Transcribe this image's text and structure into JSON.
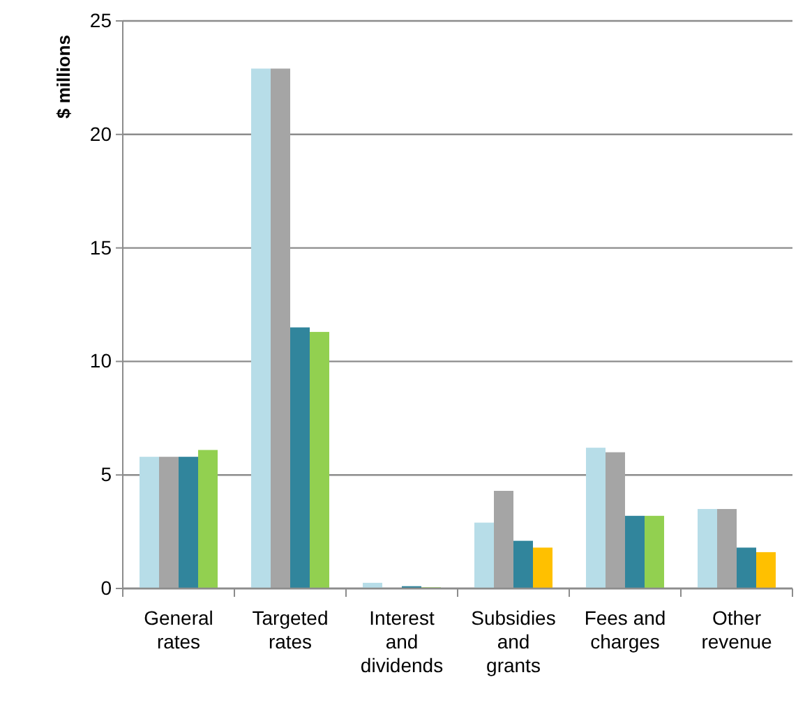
{
  "chart_data": {
    "type": "bar",
    "ylabel": "$ millions",
    "categories": [
      "General rates",
      "Targeted rates",
      "Interest and dividends",
      "Subsidies and grants",
      "Fees and charges",
      "Other revenue"
    ],
    "series": [
      {
        "color": "#b7dde8",
        "values": [
          5.8,
          22.9,
          0.25,
          2.9,
          6.2,
          3.5
        ]
      },
      {
        "color": "#a5a5a5",
        "values": [
          5.8,
          22.9,
          null,
          4.3,
          6.0,
          3.5
        ]
      },
      {
        "color": "#31859c",
        "values": [
          5.8,
          11.5,
          0.1,
          2.1,
          3.2,
          1.8
        ]
      },
      {
        "colors": [
          "#92d050",
          "#92d050",
          "#92d050",
          "#ffc000",
          "#92d050",
          "#ffc000"
        ],
        "values": [
          6.1,
          11.3,
          0.05,
          1.8,
          3.2,
          1.6
        ]
      }
    ],
    "ylim": [
      0,
      25
    ],
    "yticks": [
      0,
      5,
      10,
      15,
      20,
      25
    ],
    "grid": "y"
  }
}
